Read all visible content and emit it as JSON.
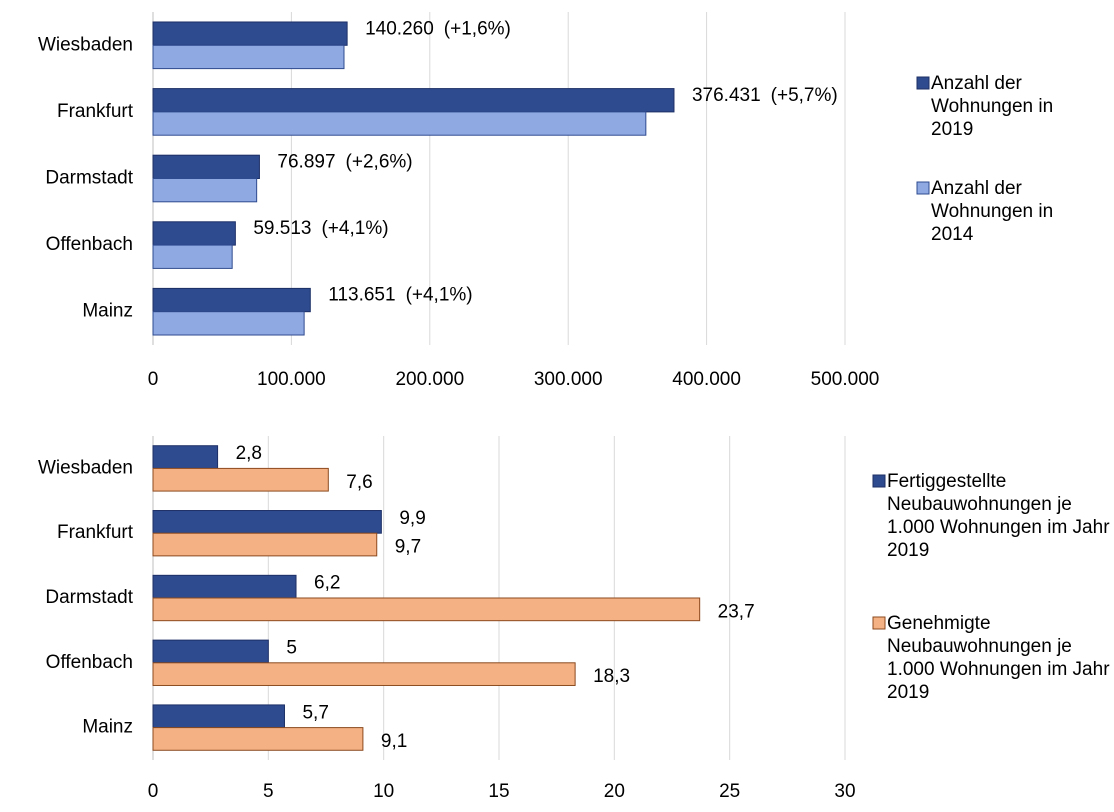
{
  "chart_data": [
    {
      "type": "bar",
      "orientation": "horizontal",
      "categories": [
        "Wiesbaden",
        "Frankfurt",
        "Darmstadt",
        "Offenbach",
        "Mainz"
      ],
      "series": [
        {
          "name": "Anzahl der Wohnungen in 2019",
          "color": "#2f4b8f",
          "values": [
            140260,
            376431,
            76897,
            59513,
            113651
          ],
          "value_labels": [
            "140.260",
            "376.431",
            "76.897",
            "59.513",
            "113.651"
          ],
          "change_labels": [
            "(+1,6%)",
            "(+5,7%)",
            "(+2,6%)",
            "(+4,1%)",
            "(+4,1%)"
          ]
        },
        {
          "name": "Anzahl der Wohnungen in 2014",
          "color": "#8fa9e2",
          "values": [
            138000,
            356100,
            74900,
            57200,
            109200
          ]
        }
      ],
      "xlim": [
        0,
        500000
      ],
      "xticks": [
        0,
        {
          "value": 100000,
          "label": "100.000"
        },
        {
          "value": 200000,
          "label": "200.000"
        },
        {
          "value": 300000,
          "label": "300.000"
        },
        {
          "value": 400000,
          "label": "400.000"
        },
        {
          "value": 500000,
          "label": "500.000"
        }
      ],
      "grid": true,
      "legend": "right"
    },
    {
      "type": "bar",
      "orientation": "horizontal",
      "categories": [
        "Wiesbaden",
        "Frankfurt",
        "Darmstadt",
        "Offenbach",
        "Mainz"
      ],
      "series": [
        {
          "name": "Fertiggestellte Neubauwohnungen je 1.000 Wohnungen im Jahr 2019",
          "color": "#2f4b8f",
          "values": [
            2.8,
            9.9,
            6.2,
            5,
            5.7
          ],
          "value_labels": [
            "2,8",
            "9,9",
            "6,2",
            "5",
            "5,7"
          ]
        },
        {
          "name": "Genehmigte Neubauwohnungen je 1.000 Wohnungen im Jahr 2019",
          "color": "#f4b183",
          "values": [
            7.6,
            9.7,
            23.7,
            18.3,
            9.1
          ],
          "value_labels": [
            "7,6",
            "9,7",
            "23,7",
            "18,3",
            "9,1"
          ]
        }
      ],
      "xlim": [
        0,
        30
      ],
      "xticks": [
        0,
        5,
        10,
        15,
        20,
        25,
        30
      ],
      "grid": true,
      "legend": "right"
    }
  ]
}
